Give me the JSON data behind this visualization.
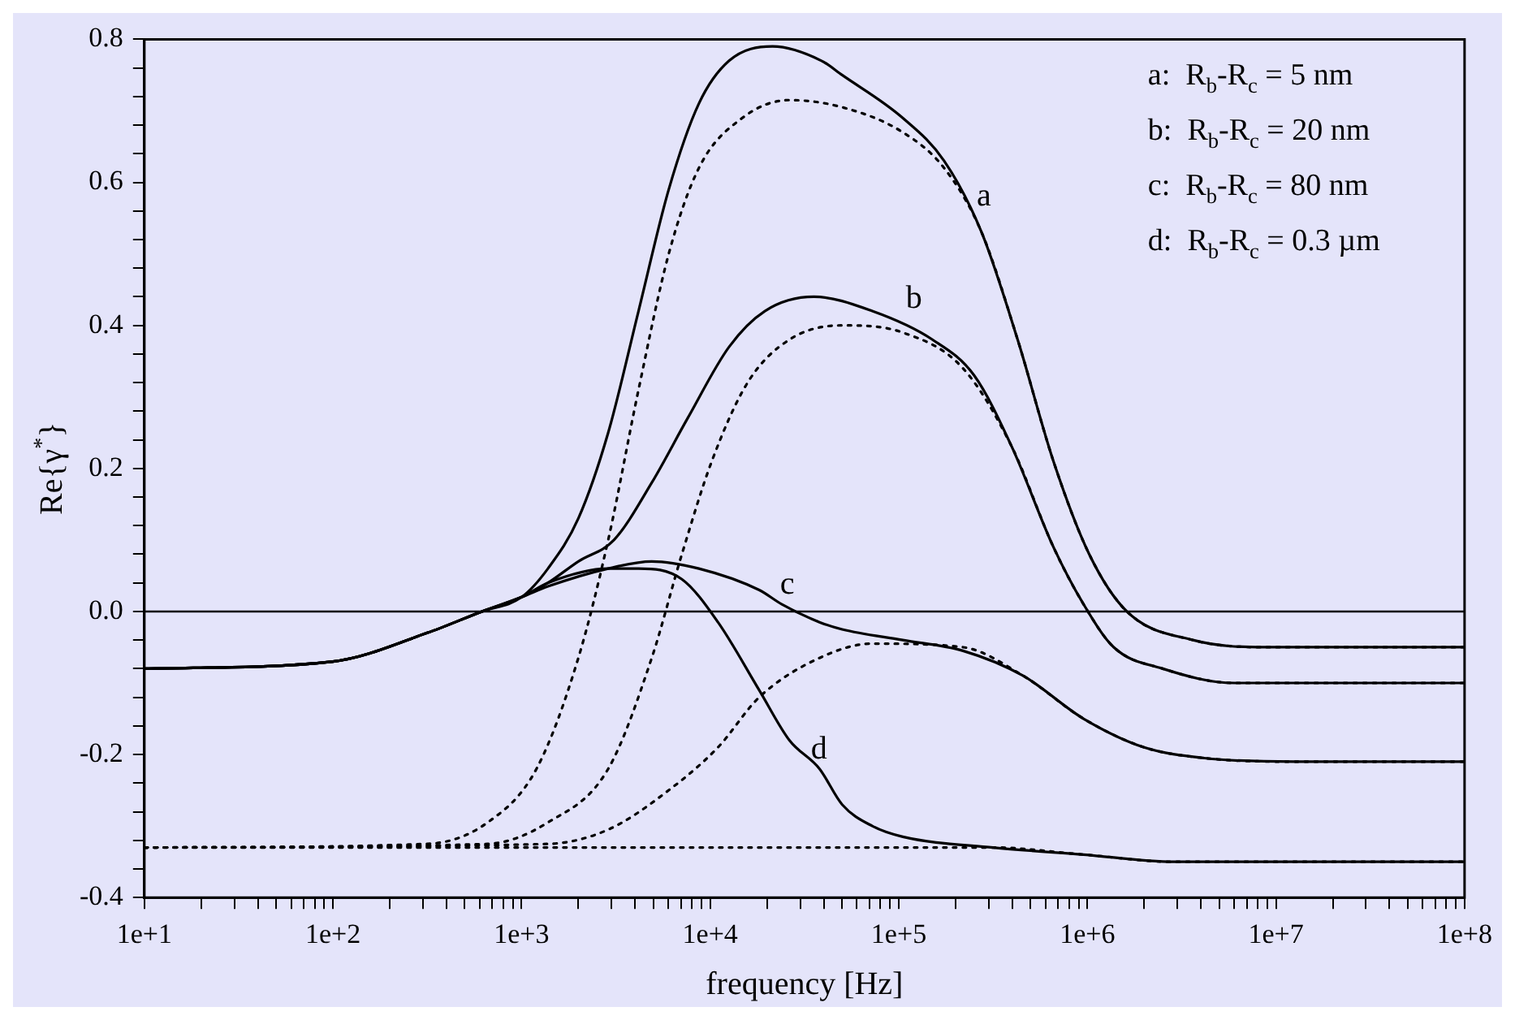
{
  "chart_data": {
    "type": "line",
    "xlabel": "frequency [Hz]",
    "ylabel": "Re{γ$^{*}$}",
    "log": "x",
    "grid": false,
    "legend": false,
    "marker": "none",
    "xlim": [
      10,
      100000000
    ],
    "ylim": [
      -0.4,
      0.8
    ],
    "xticks": [
      {
        "value": 10,
        "label": "1e+1"
      },
      {
        "value": 20,
        "label": null
      },
      {
        "value": 30,
        "label": null
      },
      {
        "value": 40,
        "label": null
      },
      {
        "value": 50,
        "label": null
      },
      {
        "value": 60,
        "label": null
      },
      {
        "value": 70,
        "label": null
      },
      {
        "value": 80,
        "label": null
      },
      {
        "value": 90,
        "label": null
      },
      {
        "value": 100,
        "label": "1e+2"
      },
      {
        "value": 200,
        "label": null
      },
      {
        "value": 300,
        "label": null
      },
      {
        "value": 400,
        "label": null
      },
      {
        "value": 500,
        "label": null
      },
      {
        "value": 600,
        "label": null
      },
      {
        "value": 700,
        "label": null
      },
      {
        "value": 800,
        "label": null
      },
      {
        "value": 900,
        "label": null
      },
      {
        "value": 1000,
        "label": "1e+3"
      },
      {
        "value": 2000,
        "label": null
      },
      {
        "value": 3000,
        "label": null
      },
      {
        "value": 4000,
        "label": null
      },
      {
        "value": 5000,
        "label": null
      },
      {
        "value": 6000,
        "label": null
      },
      {
        "value": 7000,
        "label": null
      },
      {
        "value": 8000,
        "label": null
      },
      {
        "value": 9000,
        "label": null
      },
      {
        "value": 10000,
        "label": "1e+4"
      },
      {
        "value": 20000,
        "label": null
      },
      {
        "value": 30000,
        "label": null
      },
      {
        "value": 40000,
        "label": null
      },
      {
        "value": 50000,
        "label": null
      },
      {
        "value": 60000,
        "label": null
      },
      {
        "value": 70000,
        "label": null
      },
      {
        "value": 80000,
        "label": null
      },
      {
        "value": 90000,
        "label": null
      },
      {
        "value": 100000,
        "label": "1e+5"
      },
      {
        "value": 200000,
        "label": null
      },
      {
        "value": 300000,
        "label": null
      },
      {
        "value": 400000,
        "label": null
      },
      {
        "value": 500000,
        "label": null
      },
      {
        "value": 600000,
        "label": null
      },
      {
        "value": 700000,
        "label": null
      },
      {
        "value": 800000,
        "label": null
      },
      {
        "value": 900000,
        "label": null
      },
      {
        "value": 1000000,
        "label": "1e+6"
      },
      {
        "value": 2000000,
        "label": null
      },
      {
        "value": 3000000,
        "label": null
      },
      {
        "value": 4000000,
        "label": null
      },
      {
        "value": 5000000,
        "label": null
      },
      {
        "value": 6000000,
        "label": null
      },
      {
        "value": 7000000,
        "label": null
      },
      {
        "value": 8000000,
        "label": null
      },
      {
        "value": 9000000,
        "label": null
      },
      {
        "value": 10000000,
        "label": "1e+7"
      },
      {
        "value": 20000000,
        "label": null
      },
      {
        "value": 30000000,
        "label": null
      },
      {
        "value": 40000000,
        "label": null
      },
      {
        "value": 50000000,
        "label": null
      },
      {
        "value": 60000000,
        "label": null
      },
      {
        "value": 70000000,
        "label": null
      },
      {
        "value": 80000000,
        "label": null
      },
      {
        "value": 90000000,
        "label": null
      },
      {
        "value": 100000000,
        "label": "1e+8"
      }
    ],
    "yticks": [
      -0.4,
      {
        "value": -0.36,
        "label": null
      },
      {
        "value": -0.32,
        "label": null
      },
      {
        "value": -0.28,
        "label": null
      },
      {
        "value": -0.24,
        "label": null
      },
      -0.2,
      {
        "value": -0.16,
        "label": null
      },
      {
        "value": -0.12,
        "label": null
      },
      {
        "value": -0.08,
        "label": null
      },
      {
        "value": -0.04,
        "label": null
      },
      {
        "value": 0,
        "label": "0.0"
      },
      {
        "value": 0.04,
        "label": null
      },
      {
        "value": 0.08,
        "label": null
      },
      {
        "value": 0.12,
        "label": null
      },
      {
        "value": 0.16,
        "label": null
      },
      0.2,
      {
        "value": 0.24,
        "label": null
      },
      {
        "value": 0.28,
        "label": null
      },
      {
        "value": 0.32,
        "label": null
      },
      {
        "value": 0.36,
        "label": null
      },
      0.4,
      {
        "value": 0.44,
        "label": null
      },
      {
        "value": 0.48,
        "label": null
      },
      {
        "value": 0.52,
        "label": null
      },
      {
        "value": 0.56,
        "label": null
      },
      0.6,
      {
        "value": 0.64,
        "label": null
      },
      {
        "value": 0.68,
        "label": null
      },
      {
        "value": 0.72,
        "label": null
      },
      {
        "value": 0.76,
        "label": null
      },
      0.8
    ],
    "ref_lines": [
      {
        "axis": "y",
        "value": 0,
        "color": "#000000"
      }
    ],
    "series": [
      {
        "color": "#000000",
        "line_style": "solid",
        "x": [
          10,
          100,
          316,
          617,
          1000,
          1380,
          2000,
          2880,
          4170,
          6030,
          8710,
          12600,
          21400,
          38900,
          50100,
          105000,
          174000,
          275000,
          427000,
          661000,
          1023000,
          1620000,
          3630000,
          8710000,
          100000000
        ],
        "values": [
          -0.08,
          -0.07,
          -0.03,
          0.0,
          0.02,
          0.06,
          0.13,
          0.25,
          0.42,
          0.59,
          0.71,
          0.77,
          0.79,
          0.77,
          0.75,
          0.69,
          0.63,
          0.53,
          0.38,
          0.21,
          0.08,
          0.0,
          -0.04,
          -0.05,
          -0.05
        ]
      },
      {
        "color": "#000000",
        "line_style": "solid",
        "x": [
          10,
          100,
          316,
          617,
          1000,
          1380,
          2000,
          3090,
          4900,
          7590,
          12600,
          19500,
          35500,
          72400,
          151000,
          251000,
          398000,
          661000,
          955000,
          1380000,
          2510000,
          6030000,
          100000000
        ],
        "values": [
          -0.08,
          -0.07,
          -0.03,
          0.0,
          0.02,
          0.04,
          0.07,
          0.1,
          0.18,
          0.27,
          0.37,
          0.42,
          0.44,
          0.42,
          0.38,
          0.33,
          0.23,
          0.09,
          0.01,
          -0.05,
          -0.08,
          -0.1,
          -0.1
        ]
      },
      {
        "color": "#000000",
        "line_style": "solid",
        "x": [
          10,
          100,
          316,
          617,
          1000,
          1380,
          2880,
          4900,
          8710,
          18200,
          24000,
          38000,
          50100,
          105000,
          219000,
          457000,
          955000,
          2000000,
          4170000,
          12600000,
          100000000
        ],
        "values": [
          -0.08,
          -0.07,
          -0.03,
          0.0,
          0.02,
          0.035,
          0.06,
          0.07,
          0.06,
          0.03,
          0.01,
          -0.015,
          -0.025,
          -0.04,
          -0.055,
          -0.09,
          -0.15,
          -0.19,
          -0.205,
          -0.21,
          -0.21
        ]
      },
      {
        "color": "#000000",
        "line_style": "solid",
        "x": [
          10,
          100,
          316,
          617,
          1000,
          1380,
          2880,
          4170,
          7080,
          11000,
          18200,
          26300,
          38000,
          50100,
          72400,
          105000,
          316000,
          955000,
          2880000,
          100000000
        ],
        "values": [
          -0.08,
          -0.07,
          -0.03,
          0.0,
          0.02,
          0.04,
          0.06,
          0.06,
          0.045,
          -0.015,
          -0.11,
          -0.18,
          -0.22,
          -0.27,
          -0.3,
          -0.315,
          -0.33,
          -0.34,
          -0.35,
          -0.35
        ]
      },
      {
        "color": "#000000",
        "line_style": "dotted",
        "x": [
          10,
          316,
          661,
          1200,
          2000,
          2880,
          4170,
          6030,
          8710,
          14800,
          26300,
          50100,
          105000,
          174000,
          275000,
          427000,
          661000,
          1023000,
          1620000,
          3630000,
          8710000,
          100000000
        ],
        "values": [
          -0.33,
          -0.325,
          -0.295,
          -0.22,
          -0.065,
          0.1,
          0.31,
          0.5,
          0.62,
          0.69,
          0.715,
          0.705,
          0.67,
          0.62,
          0.53,
          0.38,
          0.21,
          0.08,
          0.0,
          -0.04,
          -0.05,
          -0.05
        ]
      },
      {
        "color": "#000000",
        "line_style": "dotted",
        "x": [
          10,
          661,
          1380,
          2880,
          4900,
          7080,
          10200,
          15800,
          26300,
          50100,
          105000,
          219000,
          398000,
          661000,
          955000,
          1380000,
          2510000,
          6030000,
          100000000
        ],
        "values": [
          -0.33,
          -0.325,
          -0.295,
          -0.22,
          -0.065,
          0.08,
          0.21,
          0.32,
          0.38,
          0.4,
          0.39,
          0.34,
          0.23,
          0.09,
          0.01,
          -0.05,
          -0.08,
          -0.1,
          -0.1
        ]
      },
      {
        "color": "#000000",
        "line_style": "dotted",
        "x": [
          10,
          1380,
          2880,
          6030,
          11000,
          18200,
          38000,
          72400,
          219000,
          457000,
          955000,
          2000000,
          4170000,
          12600000,
          100000000
        ],
        "values": [
          -0.33,
          -0.325,
          -0.305,
          -0.25,
          -0.19,
          -0.12,
          -0.065,
          -0.045,
          -0.05,
          -0.09,
          -0.15,
          -0.19,
          -0.205,
          -0.21,
          -0.21
        ]
      },
      {
        "color": "#000000",
        "line_style": "dotted",
        "x": [
          10,
          105000,
          316000,
          955000,
          2880000,
          100000000
        ],
        "values": [
          -0.33,
          -0.33,
          -0.33,
          -0.34,
          -0.35,
          -0.35
        ]
      }
    ],
    "annotations": [
      "a:  R$_{b}$-R$_{c}$ = 5 nm",
      "b:  R$_{b}$-R$_{c}$ = 20 nm",
      "c:  R$_{b}$-R$_{c}$ = 80 nm",
      "d:  R$_{b}$-R$_{c}$ = 0.3 µm",
      "a",
      "b",
      "c",
      "d"
    ]
  }
}
